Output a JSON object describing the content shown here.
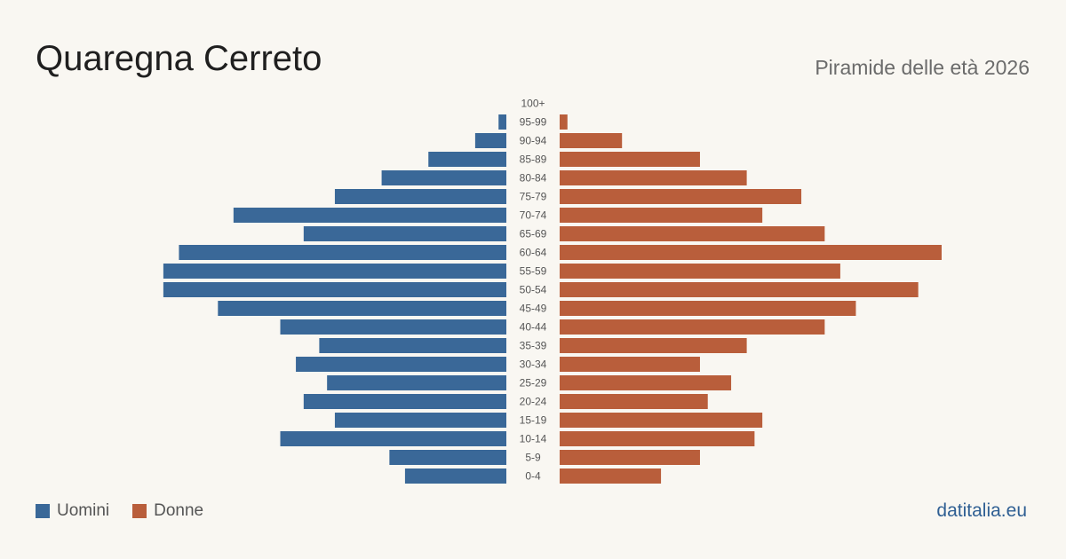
{
  "header": {
    "title": "Quaregna Cerreto",
    "subtitle": "Piramide delle età 2026"
  },
  "legend": {
    "men": "Uomini",
    "women": "Donne"
  },
  "brand": "datitalia.eu",
  "colors": {
    "men": "#3a6898",
    "women": "#b95e3b",
    "background": "#f9f7f2"
  },
  "chart_data": {
    "type": "bar",
    "orientation": "horizontal-pyramid",
    "categories": [
      "100+",
      "95-99",
      "90-94",
      "85-89",
      "80-84",
      "75-79",
      "70-74",
      "65-69",
      "60-64",
      "55-59",
      "50-54",
      "45-49",
      "40-44",
      "35-39",
      "30-34",
      "25-29",
      "20-24",
      "15-19",
      "10-14",
      "5-9",
      "0-4"
    ],
    "series": [
      {
        "name": "Uomini",
        "values": [
          0,
          1,
          4,
          10,
          16,
          22,
          35,
          26,
          42,
          44,
          44,
          37,
          29,
          24,
          27,
          23,
          26,
          22,
          29,
          15,
          13
        ]
      },
      {
        "name": "Donne",
        "values": [
          0,
          1,
          8,
          18,
          24,
          31,
          26,
          34,
          49,
          36,
          46,
          38,
          34,
          24,
          18,
          22,
          19,
          26,
          25,
          18,
          13
        ]
      }
    ]
  }
}
